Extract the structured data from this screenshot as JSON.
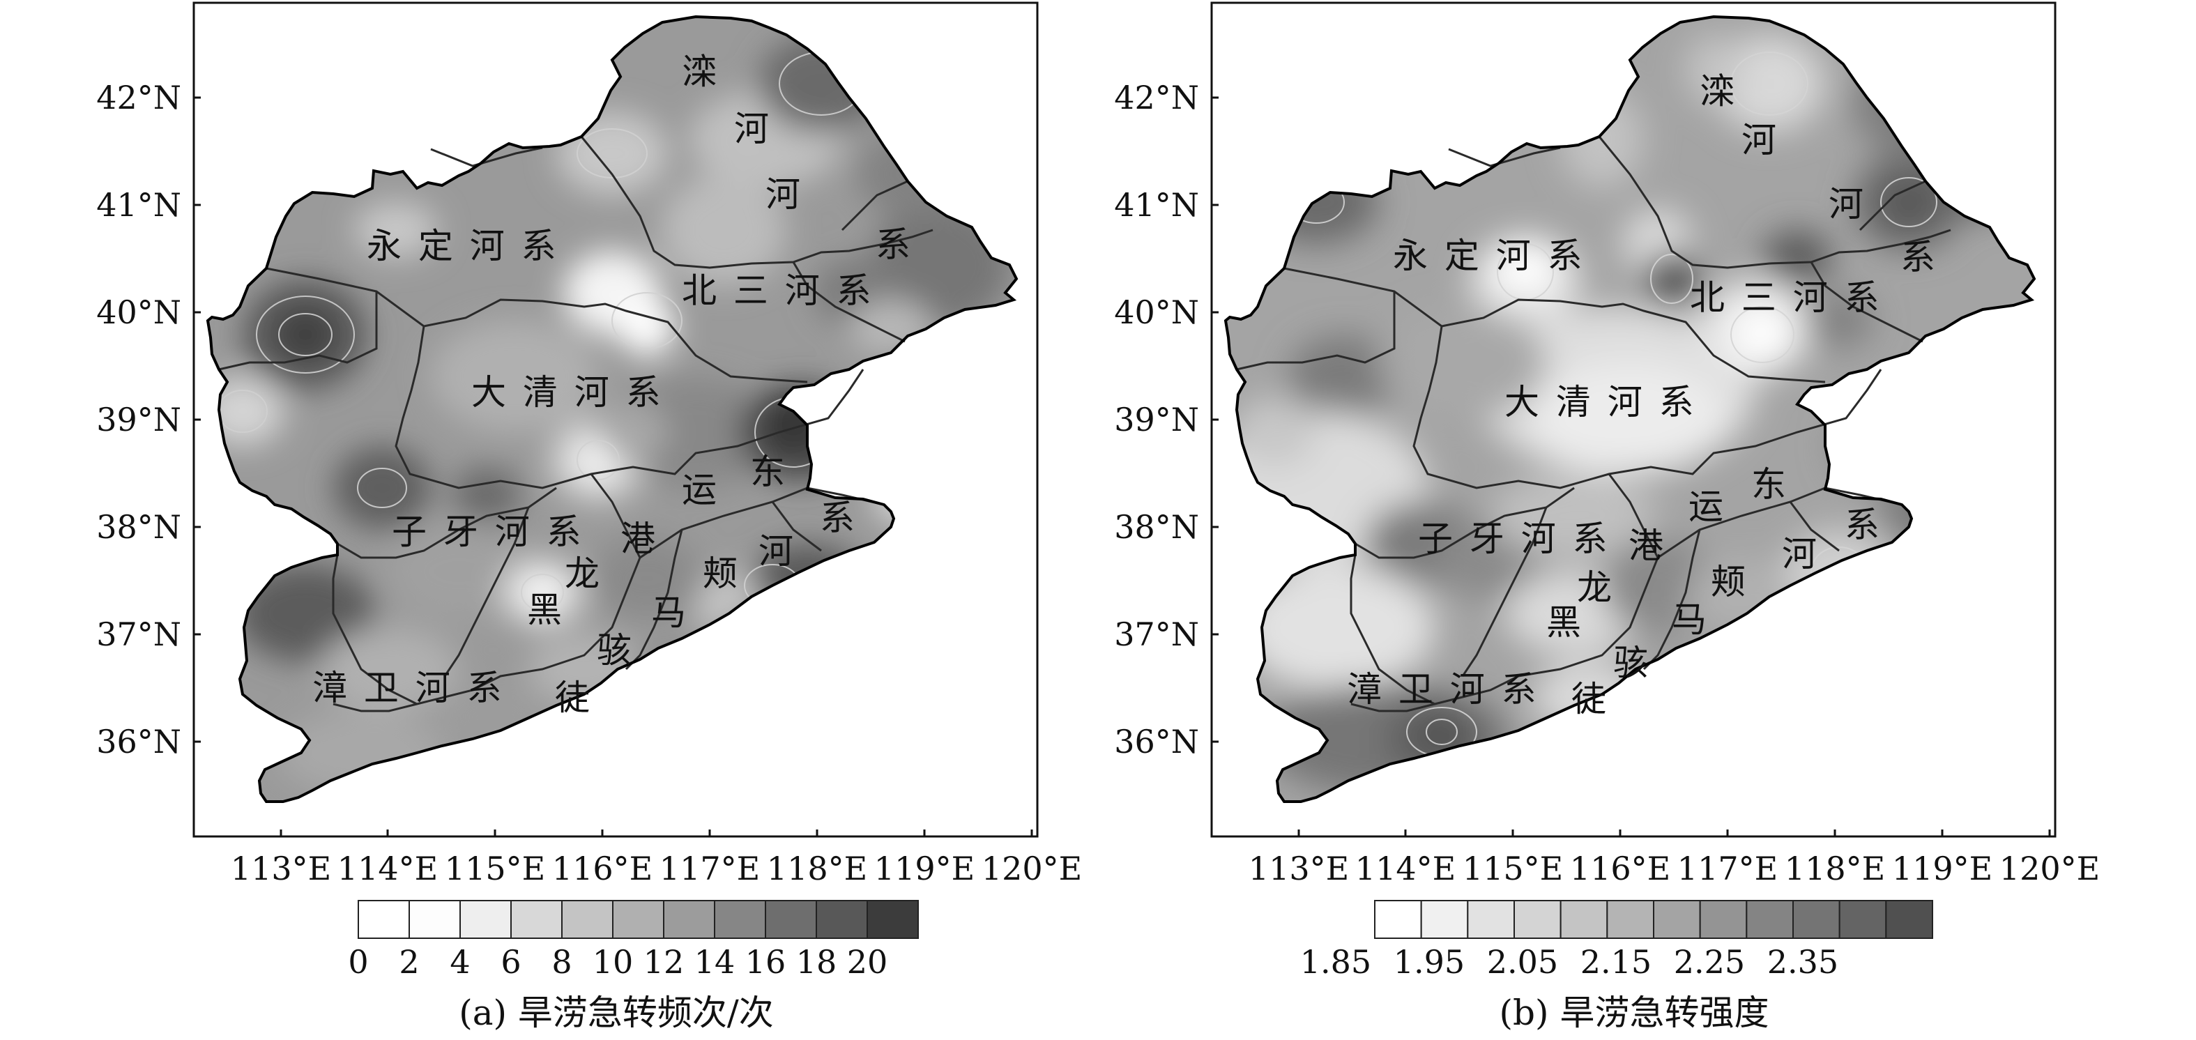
{
  "panels": [
    {
      "id": "a",
      "caption": "(a) 旱涝急转频次/次",
      "x_ticks": [
        "113°E",
        "114°E",
        "115°E",
        "116°E",
        "117°E",
        "118°E",
        "119°E",
        "120°E"
      ],
      "y_ticks": [
        "42°N",
        "41°N",
        "40°N",
        "39°N",
        "38°N",
        "37°N",
        "36°N"
      ],
      "colorbar_labels": [
        "0",
        "2",
        "4",
        "6",
        "8",
        "10",
        "12",
        "14",
        "16",
        "18",
        "20"
      ],
      "colorbar_colors": [
        "#ffffff",
        "#fdfdfd",
        "#eeeeee",
        "#d8d8d8",
        "#c4c4c4",
        "#b0b0b0",
        "#9c9c9c",
        "#868686",
        "#6e6e6e",
        "#585858",
        "#3c3c3c"
      ],
      "region_labels": {
        "luanhe_1": "滦",
        "luanhe_2": "河",
        "luanhe_3": "河",
        "luanhe_4": "系",
        "yongding": "永 定 河 系",
        "beisan": "北 三 河 系",
        "daqing": "大 清 河 系",
        "ziya": "子 牙 河 系",
        "zhangwei": "漳 卫 河 系",
        "heilonggang_1": "黑",
        "heilonggang_2": "龙",
        "heilonggang_3": "港",
        "yundong_1": "运",
        "yundong_2": "东",
        "yundong_3": "系",
        "majia_1": "马",
        "majia_2": "颊",
        "majia_3": "河",
        "tuhai_1": "徒",
        "tuhai_2": "骇"
      }
    },
    {
      "id": "b",
      "caption": "(b) 旱涝急转强度",
      "x_ticks": [
        "113°E",
        "114°E",
        "115°E",
        "116°E",
        "117°E",
        "118°E",
        "119°E",
        "120°E"
      ],
      "y_ticks": [
        "42°N",
        "41°N",
        "40°N",
        "39°N",
        "38°N",
        "37°N",
        "36°N"
      ],
      "colorbar_labels": [
        "1.85",
        "1.95",
        "2.05",
        "2.15",
        "2.25",
        "2.35"
      ],
      "colorbar_colors": [
        "#ffffff",
        "#f0f0f0",
        "#e2e2e2",
        "#d4d4d4",
        "#c4c4c4",
        "#b4b4b4",
        "#a4a4a4",
        "#949494",
        "#848484",
        "#747474",
        "#646464",
        "#505050"
      ],
      "region_labels": {
        "luanhe_1": "滦",
        "luanhe_2": "河",
        "luanhe_3": "河",
        "luanhe_4": "系",
        "yongding": "永 定 河 系",
        "beisan": "北 三 河 系",
        "daqing": "大 清 河 系",
        "ziya": "子 牙 河 系",
        "zhangwei": "漳 卫 河 系",
        "heilonggang_1": "黑",
        "heilonggang_2": "龙",
        "heilonggang_3": "港",
        "yundong_1": "运",
        "yundong_2": "东",
        "yundong_3": "系",
        "majia_1": "马",
        "majia_2": "颊",
        "majia_3": "河",
        "tuhai_1": "徒",
        "tuhai_2": "骇"
      }
    }
  ]
}
